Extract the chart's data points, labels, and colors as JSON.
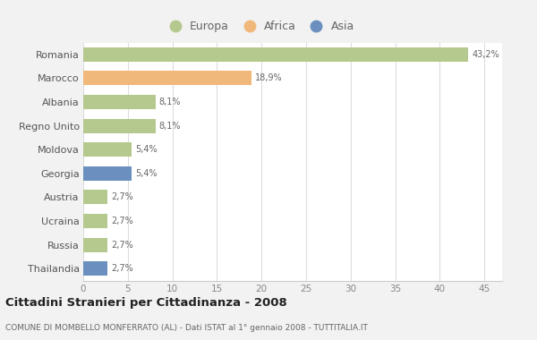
{
  "countries": [
    "Romania",
    "Marocco",
    "Albania",
    "Regno Unito",
    "Moldova",
    "Georgia",
    "Austria",
    "Ucraina",
    "Russia",
    "Thailandia"
  ],
  "values": [
    43.2,
    18.9,
    8.1,
    8.1,
    5.4,
    5.4,
    2.7,
    2.7,
    2.7,
    2.7
  ],
  "labels": [
    "43,2%",
    "18,9%",
    "8,1%",
    "8,1%",
    "5,4%",
    "5,4%",
    "2,7%",
    "2,7%",
    "2,7%",
    "2,7%"
  ],
  "colors": [
    "#b5c98e",
    "#f0b87a",
    "#b5c98e",
    "#b5c98e",
    "#b5c98e",
    "#6b8fbf",
    "#b5c98e",
    "#b5c98e",
    "#b5c98e",
    "#6b8fbf"
  ],
  "legend_labels": [
    "Europa",
    "Africa",
    "Asia"
  ],
  "legend_colors": [
    "#b5c98e",
    "#f0b87a",
    "#6b8fbf"
  ],
  "title": "Cittadini Stranieri per Cittadinanza - 2008",
  "subtitle": "COMUNE DI MOMBELLO MONFERRATO (AL) - Dati ISTAT al 1° gennaio 2008 - TUTTITALIA.IT",
  "xlim": [
    0,
    47
  ],
  "xticks": [
    0,
    5,
    10,
    15,
    20,
    25,
    30,
    35,
    40,
    45
  ],
  "background_color": "#f2f2f2",
  "plot_background": "#ffffff"
}
